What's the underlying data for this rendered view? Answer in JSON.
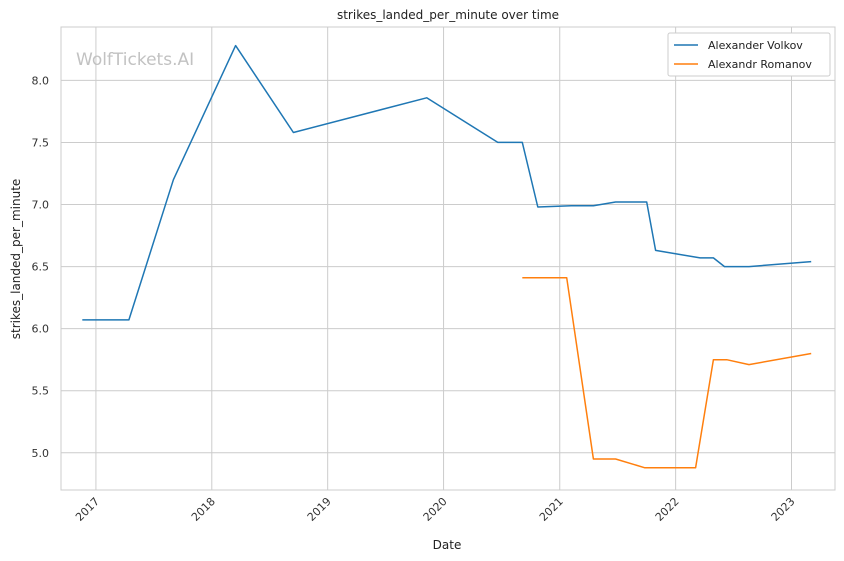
{
  "chart_data": {
    "type": "line",
    "title": "strikes_landed_per_minute over time",
    "xlabel": "Date",
    "ylabel": "strikes_landed_per_minute",
    "watermark": "WolfTickets.AI",
    "xlim": [
      "2016-09-13",
      "2023-05-18"
    ],
    "ylim": [
      4.7,
      8.43
    ],
    "x_ticks": [
      {
        "date": "2017-01-01",
        "label": "2017"
      },
      {
        "date": "2018-01-01",
        "label": "2018"
      },
      {
        "date": "2019-01-01",
        "label": "2019"
      },
      {
        "date": "2020-01-01",
        "label": "2020"
      },
      {
        "date": "2021-01-01",
        "label": "2021"
      },
      {
        "date": "2022-01-01",
        "label": "2022"
      },
      {
        "date": "2023-01-01",
        "label": "2023"
      }
    ],
    "y_ticks": [
      5.0,
      5.5,
      6.0,
      6.5,
      7.0,
      7.5,
      8.0
    ],
    "y_tick_labels": [
      "5.0",
      "5.5",
      "6.0",
      "6.5",
      "7.0",
      "7.5",
      "8.0"
    ],
    "grid": true,
    "legend_position": "top-right",
    "series": [
      {
        "name": "Alexander Volkov",
        "color": "#1f77b4",
        "points": [
          {
            "x": "2016-11-19",
            "y": 6.07
          },
          {
            "x": "2017-04-15",
            "y": 6.07
          },
          {
            "x": "2017-09-02",
            "y": 7.2
          },
          {
            "x": "2018-03-17",
            "y": 8.28
          },
          {
            "x": "2018-09-15",
            "y": 7.58
          },
          {
            "x": "2019-11-09",
            "y": 7.86
          },
          {
            "x": "2020-06-20",
            "y": 7.5
          },
          {
            "x": "2020-09-05",
            "y": 7.5
          },
          {
            "x": "2020-10-24",
            "y": 6.98
          },
          {
            "x": "2021-02-06",
            "y": 6.99
          },
          {
            "x": "2021-04-17",
            "y": 6.99
          },
          {
            "x": "2021-06-26",
            "y": 7.02
          },
          {
            "x": "2021-10-02",
            "y": 7.02
          },
          {
            "x": "2021-10-30",
            "y": 6.63
          },
          {
            "x": "2022-03-19",
            "y": 6.57
          },
          {
            "x": "2022-04-30",
            "y": 6.57
          },
          {
            "x": "2022-06-04",
            "y": 6.5
          },
          {
            "x": "2022-08-20",
            "y": 6.5
          },
          {
            "x": "2023-03-04",
            "y": 6.54
          }
        ]
      },
      {
        "name": "Alexandr Romanov",
        "color": "#ff7f0e",
        "points": [
          {
            "x": "2020-09-05",
            "y": 6.41
          },
          {
            "x": "2021-01-23",
            "y": 6.41
          },
          {
            "x": "2021-04-17",
            "y": 4.95
          },
          {
            "x": "2021-06-26",
            "y": 4.95
          },
          {
            "x": "2021-09-25",
            "y": 4.88
          },
          {
            "x": "2022-03-05",
            "y": 4.88
          },
          {
            "x": "2022-04-30",
            "y": 5.75
          },
          {
            "x": "2022-06-11",
            "y": 5.75
          },
          {
            "x": "2022-08-20",
            "y": 5.71
          },
          {
            "x": "2023-03-04",
            "y": 5.8
          }
        ]
      }
    ]
  }
}
